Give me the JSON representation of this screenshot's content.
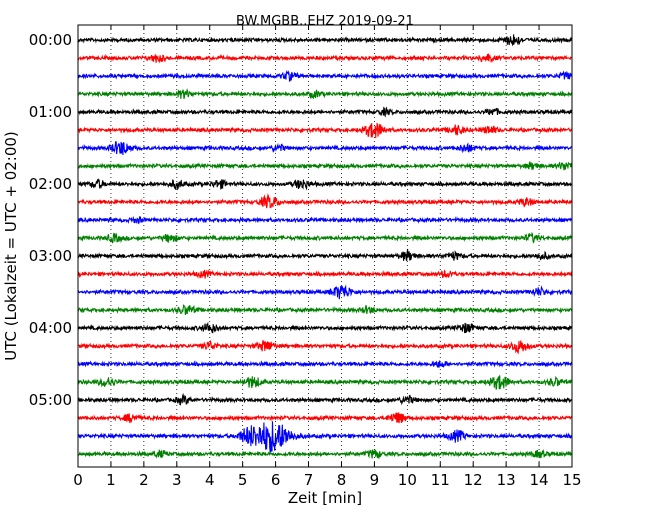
{
  "chart_data": {
    "type": "line",
    "title": "BW.MGBB..EHZ 2019-09-21",
    "xlabel": "Zeit  [min]",
    "ylabel": "UTC (Lokalzeit = UTC + 02:00)",
    "xlim": [
      0,
      15
    ],
    "x_ticks": [
      "0",
      "1",
      "2",
      "3",
      "4",
      "5",
      "6",
      "7",
      "8",
      "9",
      "10",
      "11",
      "12",
      "13",
      "14",
      "15"
    ],
    "grid": "vertical-dotted",
    "row_interval_min": 15,
    "row_colors": [
      "#000000",
      "#ff0000",
      "#0000ff",
      "#008000"
    ],
    "y_ticks": [
      {
        "label": "00:00",
        "row": 0
      },
      {
        "label": "01:00",
        "row": 4
      },
      {
        "label": "02:00",
        "row": 8
      },
      {
        "label": "03:00",
        "row": 12
      },
      {
        "label": "04:00",
        "row": 16
      },
      {
        "label": "05:00",
        "row": 20
      }
    ],
    "rows": [
      {
        "start": "00:00",
        "bursts": [
          [
            13.2,
            0.7
          ]
        ]
      },
      {
        "start": "00:15",
        "bursts": [
          [
            2.4,
            0.5
          ],
          [
            12.4,
            0.5
          ]
        ]
      },
      {
        "start": "00:30",
        "bursts": [
          [
            6.4,
            0.5
          ],
          [
            14.8,
            0.4
          ]
        ]
      },
      {
        "start": "00:45",
        "bursts": [
          [
            3.2,
            0.5
          ],
          [
            7.2,
            0.4
          ]
        ]
      },
      {
        "start": "01:00",
        "bursts": [
          [
            9.3,
            0.4
          ],
          [
            12.6,
            0.4
          ]
        ]
      },
      {
        "start": "01:15",
        "bursts": [
          [
            9.0,
            1.0
          ],
          [
            11.5,
            0.6
          ],
          [
            12.5,
            0.5
          ]
        ]
      },
      {
        "start": "01:30",
        "bursts": [
          [
            1.3,
            0.9
          ],
          [
            6.1,
            0.4
          ],
          [
            11.8,
            0.5
          ]
        ]
      },
      {
        "start": "01:45",
        "bursts": [
          [
            13.8,
            0.4
          ],
          [
            14.8,
            0.5
          ]
        ]
      },
      {
        "start": "02:00",
        "bursts": [
          [
            0.6,
            0.5
          ],
          [
            3.0,
            0.5
          ],
          [
            4.3,
            0.5
          ],
          [
            6.8,
            0.6
          ]
        ]
      },
      {
        "start": "02:15",
        "bursts": [
          [
            5.8,
            0.8
          ],
          [
            13.6,
            0.5
          ]
        ]
      },
      {
        "start": "02:30",
        "bursts": [
          [
            1.8,
            0.3
          ]
        ]
      },
      {
        "start": "02:45",
        "bursts": [
          [
            1.1,
            0.5
          ],
          [
            2.8,
            0.5
          ],
          [
            13.8,
            0.5
          ]
        ]
      },
      {
        "start": "03:00",
        "bursts": [
          [
            10.0,
            0.6
          ],
          [
            11.4,
            0.5
          ],
          [
            14.1,
            0.4
          ]
        ]
      },
      {
        "start": "03:15",
        "bursts": [
          [
            3.8,
            0.4
          ],
          [
            11.2,
            0.4
          ]
        ]
      },
      {
        "start": "03:30",
        "bursts": [
          [
            8.0,
            0.9
          ],
          [
            14.0,
            0.5
          ]
        ]
      },
      {
        "start": "03:45",
        "bursts": [
          [
            3.3,
            0.6
          ],
          [
            8.8,
            0.4
          ]
        ]
      },
      {
        "start": "04:00",
        "bursts": [
          [
            4.0,
            0.6
          ],
          [
            11.8,
            0.6
          ]
        ]
      },
      {
        "start": "04:15",
        "bursts": [
          [
            4.0,
            0.5
          ],
          [
            5.7,
            0.7
          ],
          [
            13.4,
            0.8
          ]
        ]
      },
      {
        "start": "04:30",
        "bursts": [
          [
            11.0,
            0.4
          ]
        ]
      },
      {
        "start": "04:45",
        "bursts": [
          [
            0.9,
            0.6
          ],
          [
            5.3,
            0.7
          ],
          [
            12.8,
            0.9
          ],
          [
            14.5,
            0.5
          ]
        ]
      },
      {
        "start": "05:00",
        "bursts": [
          [
            3.2,
            0.5
          ],
          [
            10.0,
            0.5
          ]
        ]
      },
      {
        "start": "05:15",
        "bursts": [
          [
            1.6,
            0.5
          ],
          [
            9.7,
            0.7
          ]
        ]
      },
      {
        "start": "05:30",
        "bursts": [
          [
            5.2,
            1.0
          ],
          [
            5.9,
            2.2
          ],
          [
            11.5,
            0.7
          ]
        ]
      },
      {
        "start": "05:45",
        "bursts": [
          [
            2.5,
            0.4
          ],
          [
            9.0,
            0.5
          ],
          [
            14.0,
            0.4
          ]
        ]
      }
    ]
  }
}
